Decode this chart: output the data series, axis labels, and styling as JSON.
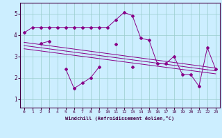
{
  "title": "",
  "xlabel": "Windchill (Refroidissement éolien,°C)",
  "ylabel": "",
  "bg_color": "#cceeff",
  "line_color": "#880088",
  "grid_color": "#99cccc",
  "axis_color": "#440044",
  "x_ticks": [
    0,
    1,
    2,
    3,
    4,
    5,
    6,
    7,
    8,
    9,
    10,
    11,
    12,
    13,
    14,
    15,
    16,
    17,
    18,
    19,
    20,
    21,
    22,
    23
  ],
  "y_ticks": [
    1,
    2,
    3,
    4,
    5
  ],
  "ylim": [
    0.6,
    5.5
  ],
  "xlim": [
    -0.5,
    23.5
  ],
  "series1": [
    4.1,
    4.35,
    4.35,
    4.35,
    4.35,
    4.35,
    4.35,
    4.35,
    4.35,
    4.35,
    4.35,
    4.7,
    5.05,
    4.9,
    3.85,
    3.75,
    2.65,
    2.65,
    3.0,
    2.15,
    2.15,
    1.6,
    3.4,
    2.4
  ],
  "series2": [
    null,
    null,
    3.6,
    3.7,
    null,
    2.4,
    1.5,
    1.75,
    2.0,
    2.5,
    null,
    3.55,
    null,
    2.5,
    null,
    null,
    null,
    null,
    null,
    null,
    null,
    null,
    null,
    null
  ],
  "trend1_start": 3.65,
  "trend1_end": 2.45,
  "trend2_start": 3.5,
  "trend2_end": 2.32,
  "trend3_start": 3.35,
  "trend3_end": 2.18
}
